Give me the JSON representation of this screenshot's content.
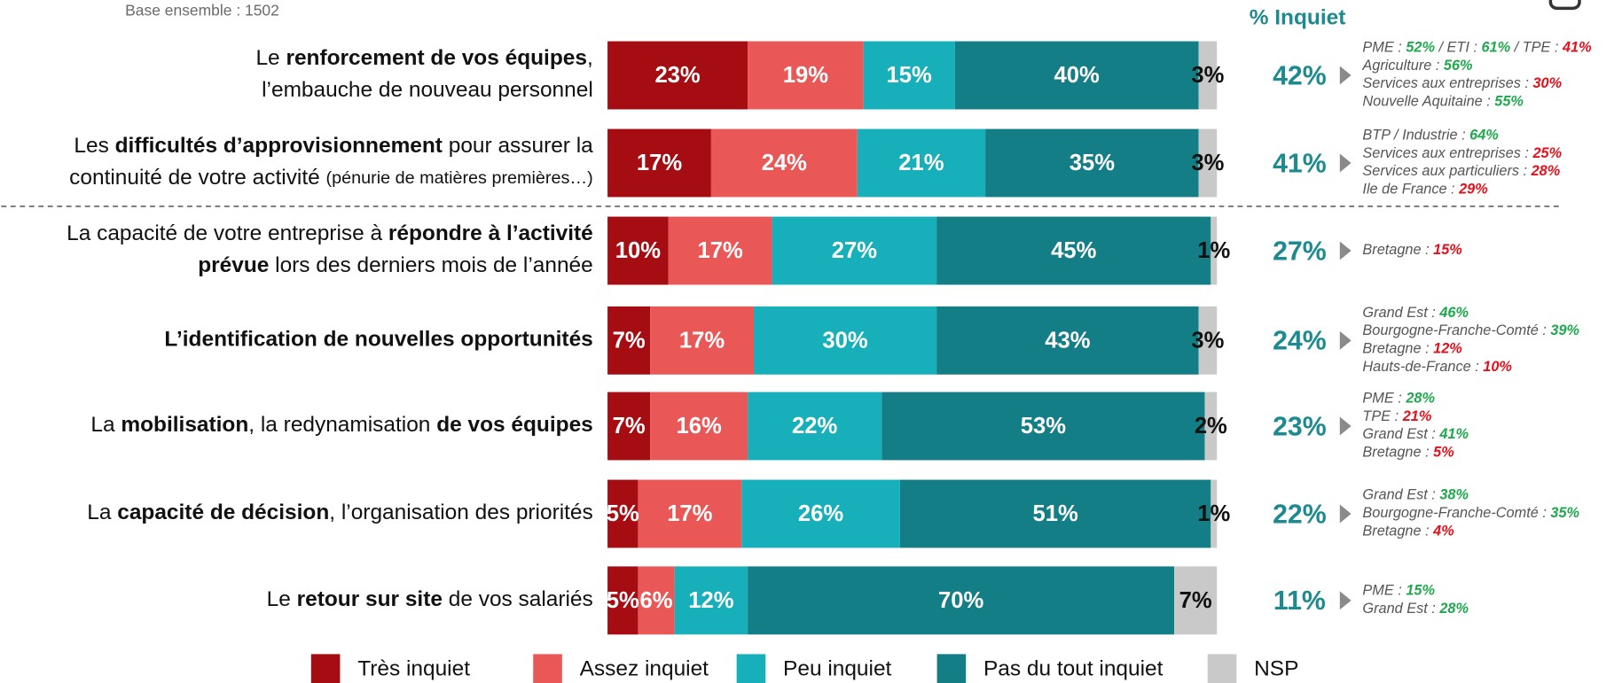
{
  "chart_data": {
    "type": "stacked-bar-horizontal",
    "subtitle": "Base ensemble : 1502",
    "categories": [
      [
        [
          {
            "text": "Le "
          },
          {
            "text": "renforcement de vos équipes",
            "bold": true
          },
          {
            "text": ","
          }
        ],
        [
          {
            "text": "l’embauche de nouveau personnel"
          }
        ]
      ],
      [
        [
          {
            "text": "Les "
          },
          {
            "text": "difficultés d’approvisionnement",
            "bold": true
          },
          {
            "text": " pour assurer la"
          }
        ],
        [
          {
            "text": "continuité de votre activité "
          },
          {
            "text": "(pénurie de matières premières…)",
            "small": true
          }
        ]
      ],
      [
        [
          {
            "text": "La capacité de votre entreprise à "
          },
          {
            "text": "répondre à l’activité",
            "bold": true
          }
        ],
        [
          {
            "text": "prévue",
            "bold": true
          },
          {
            "text": " lors des derniers mois de l’année"
          }
        ]
      ],
      [
        [
          {
            "text": "L’identification de nouvelles opportunités",
            "bold": true
          }
        ]
      ],
      [
        [
          {
            "text": "La "
          },
          {
            "text": "mobilisation",
            "bold": true
          },
          {
            "text": ", la redynamisation "
          },
          {
            "text": "de vos équipes",
            "bold": true
          }
        ]
      ],
      [
        [
          {
            "text": "La "
          },
          {
            "text": "capacité de décision",
            "bold": true
          },
          {
            "text": ", l’organisation des priorités"
          }
        ]
      ],
      [
        [
          {
            "text": "Le "
          },
          {
            "text": "retour sur site",
            "bold": true
          },
          {
            "text": " de vos salariés"
          }
        ]
      ]
    ],
    "xlim": [
      0,
      100
    ],
    "series": [
      {
        "name": "Très inquiet",
        "color": "#a50d12",
        "label_color": "#ffffff",
        "values": [
          23,
          17,
          10,
          7,
          7,
          5,
          5
        ],
        "value_labels": [
          "23%",
          "17%",
          "10%",
          "7%",
          "7%",
          "5%",
          "5%"
        ]
      },
      {
        "name": "Assez inquiet",
        "color": "#e95757",
        "label_color": "#ffffff",
        "values": [
          19,
          24,
          17,
          17,
          16,
          17,
          6
        ],
        "value_labels": [
          "19%",
          "24%",
          "17%",
          "17%",
          "16%",
          "17%",
          "6%"
        ]
      },
      {
        "name": "Peu inquiet",
        "color": "#17b0ba",
        "label_color": "#ffffff",
        "values": [
          15,
          21,
          27,
          30,
          22,
          26,
          12
        ],
        "value_labels": [
          "15%",
          "21%",
          "27%",
          "30%",
          "22%",
          "26%",
          "12%"
        ]
      },
      {
        "name": "Pas du tout inquiet",
        "color": "#147e86",
        "label_color": "#ffffff",
        "values": [
          40,
          35,
          45,
          43,
          53,
          51,
          70
        ],
        "value_labels": [
          "40%",
          "35%",
          "45%",
          "43%",
          "53%",
          "51%",
          "70%"
        ]
      },
      {
        "name": "NSP",
        "color": "#c9c9c9",
        "label_color": "#111111",
        "values": [
          3,
          3,
          1,
          3,
          2,
          1,
          7
        ],
        "value_labels": [
          "3%",
          "3%",
          "1%",
          "3%",
          "2%",
          "1%",
          "7%"
        ]
      }
    ],
    "inquiet_header": "% Inquiet",
    "inquiet_color": "#1d8a8f",
    "inquiet": [
      "42%",
      "41%",
      "27%",
      "24%",
      "23%",
      "22%",
      "11%"
    ],
    "notes": [
      [
        [
          {
            "text": "PME : "
          },
          {
            "text": "52%",
            "color": "#1fa84c"
          },
          {
            "text": " / ETI : "
          },
          {
            "text": "61%",
            "color": "#1fa84c"
          },
          {
            "text": " / TPE : "
          },
          {
            "text": "41%",
            "color": "#e3101b"
          }
        ],
        [
          {
            "text": "Agriculture : "
          },
          {
            "text": "56%",
            "color": "#1fa84c"
          }
        ],
        [
          {
            "text": "Services aux entreprises : "
          },
          {
            "text": "30%",
            "color": "#e3101b"
          }
        ],
        [
          {
            "text": "Nouvelle Aquitaine : "
          },
          {
            "text": "55%",
            "color": "#1fa84c"
          }
        ]
      ],
      [
        [
          {
            "text": "BTP / Industrie : "
          },
          {
            "text": "64%",
            "color": "#1fa84c"
          }
        ],
        [
          {
            "text": "Services aux entreprises : "
          },
          {
            "text": "25%",
            "color": "#e3101b"
          }
        ],
        [
          {
            "text": "Services aux particuliers : "
          },
          {
            "text": "28%",
            "color": "#e3101b"
          }
        ],
        [
          {
            "text": "Ile de France : "
          },
          {
            "text": "29%",
            "color": "#e3101b"
          }
        ]
      ],
      [
        [
          {
            "text": "Bretagne : "
          },
          {
            "text": "15%",
            "color": "#e3101b"
          }
        ]
      ],
      [
        [
          {
            "text": "Grand Est : "
          },
          {
            "text": "46%",
            "color": "#1fa84c"
          }
        ],
        [
          {
            "text": "Bourgogne-Franche-Comté : "
          },
          {
            "text": "39%",
            "color": "#1fa84c"
          }
        ],
        [
          {
            "text": "Bretagne : "
          },
          {
            "text": "12%",
            "color": "#e3101b"
          }
        ],
        [
          {
            "text": "Hauts-de-France : "
          },
          {
            "text": "10%",
            "color": "#e3101b"
          }
        ]
      ],
      [
        [
          {
            "text": "PME : "
          },
          {
            "text": "28%",
            "color": "#1fa84c"
          }
        ],
        [
          {
            "text": "TPE : "
          },
          {
            "text": "21%",
            "color": "#e3101b"
          }
        ],
        [
          {
            "text": "Grand Est : "
          },
          {
            "text": "41%",
            "color": "#1fa84c"
          }
        ],
        [
          {
            "text": "Bretagne : "
          },
          {
            "text": "5%",
            "color": "#e3101b"
          }
        ]
      ],
      [
        [
          {
            "text": "Grand Est : "
          },
          {
            "text": "38%",
            "color": "#1fa84c"
          }
        ],
        [
          {
            "text": "Bourgogne-Franche-Comté : "
          },
          {
            "text": "35%",
            "color": "#1fa84c"
          }
        ],
        [
          {
            "text": "Bretagne : "
          },
          {
            "text": "4%",
            "color": "#e3101b"
          }
        ]
      ],
      [
        [
          {
            "text": "PME : "
          },
          {
            "text": "15%",
            "color": "#1fa84c"
          }
        ],
        [
          {
            "text": "Grand Est : "
          },
          {
            "text": "28%",
            "color": "#1fa84c"
          }
        ]
      ]
    ]
  }
}
